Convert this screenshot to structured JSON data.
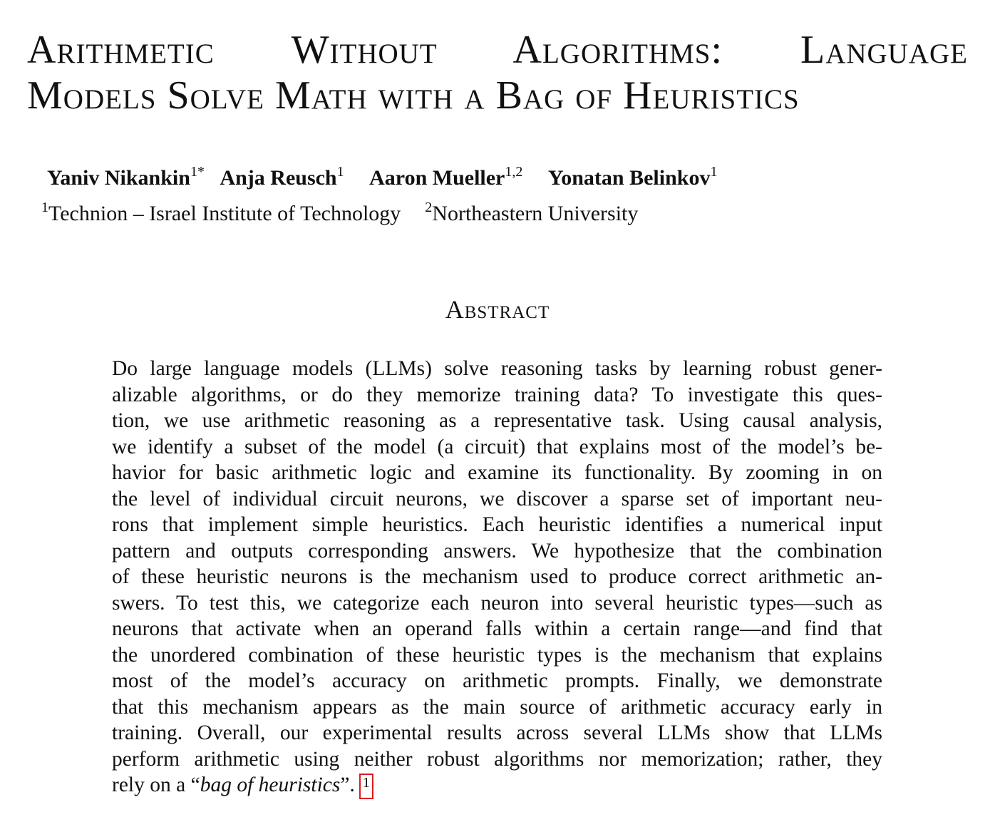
{
  "paper": {
    "title_line1": "Arithmetic Without Algorithms: Language",
    "title_line2": "Models Solve Math with a Bag of Heuristics",
    "authors": [
      {
        "name": "Yaniv Nikankin",
        "marks": "1*"
      },
      {
        "name": "Anja Reusch",
        "marks": "1"
      },
      {
        "name": "Aaron Mueller",
        "marks": "1,2"
      },
      {
        "name": "Yonatan Belinkov",
        "marks": "1"
      }
    ],
    "affiliations": [
      {
        "mark": "1",
        "name": "Technion – Israel Institute of Technology"
      },
      {
        "mark": "2",
        "name": "Northeastern University"
      }
    ],
    "abstract_heading": "Abstract",
    "abstract_lines": [
      "Do large language models (LLMs) solve reasoning tasks by learning robust gener-",
      "alizable algorithms, or do they memorize training data? To investigate this ques-",
      "tion, we use arithmetic reasoning as a representative task. Using causal analysis,",
      "we identify a subset of the model (a circuit) that explains most of the model’s be-",
      "havior for basic arithmetic logic and examine its functionality. By zooming in on",
      "the level of individual circuit neurons, we discover a sparse set of important neu-",
      "rons that implement simple heuristics. Each heuristic identifies a numerical input",
      "pattern and outputs corresponding answers. We hypothesize that the combination",
      "of these heuristic neurons is the mechanism used to produce correct arithmetic an-",
      "swers. To test this, we categorize each neuron into several heuristic types—such as",
      "neurons that activate when an operand falls within a certain range—and find that",
      "the unordered combination of these heuristic types is the mechanism that explains",
      "most of the model’s accuracy on arithmetic prompts. Finally, we demonstrate",
      "that this mechanism appears as the main source of arithmetic accuracy early in",
      "training. Overall, our experimental results across several LLMs show that LLMs",
      "perform arithmetic using neither robust algorithms nor memorization; rather, they"
    ],
    "abstract_last_prefix": "rely on a “",
    "abstract_last_italic": "bag of heuristics",
    "abstract_last_suffix": "”.",
    "footnote_mark": "1",
    "footnote_box_color": "#e0191b"
  }
}
